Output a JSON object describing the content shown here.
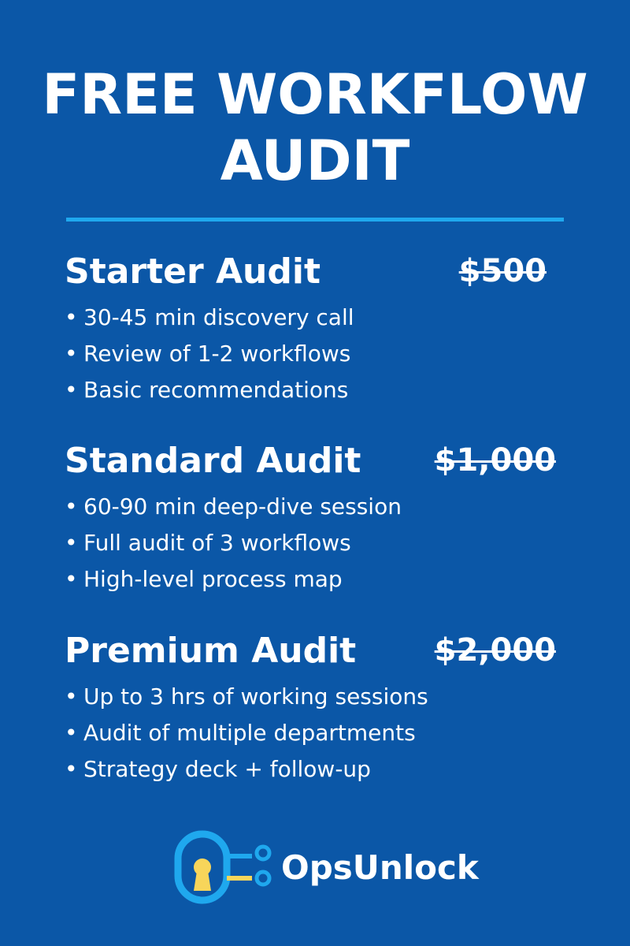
{
  "title": {
    "line1": "FREE WORKFLOW",
    "line2": "AUDIT"
  },
  "tiers": [
    {
      "name": "Starter Audit",
      "price": "$500",
      "bullets": [
        "30-45 min discovery call",
        "Review of 1-2 workflows",
        "Basic recommendations"
      ]
    },
    {
      "name": "Standard Audit",
      "price": "$1,000",
      "bullets": [
        "60-90 min deep-dive session",
        "Full audit of 3 workflows",
        "High-level process map"
      ]
    },
    {
      "name": "Premium Audit",
      "price": "$2,000",
      "bullets": [
        "Up to 3 hrs of working sessions",
        "Audit of multiple departments",
        "Strategy deck + follow-up"
      ]
    }
  ],
  "brand": {
    "name": "OpsUnlock",
    "icon": "keyhole-circuit-icon"
  },
  "colors": {
    "background": "#0b57a7",
    "accent": "#1fa8ee",
    "key": "#f7d55a",
    "text": "#ffffff"
  }
}
